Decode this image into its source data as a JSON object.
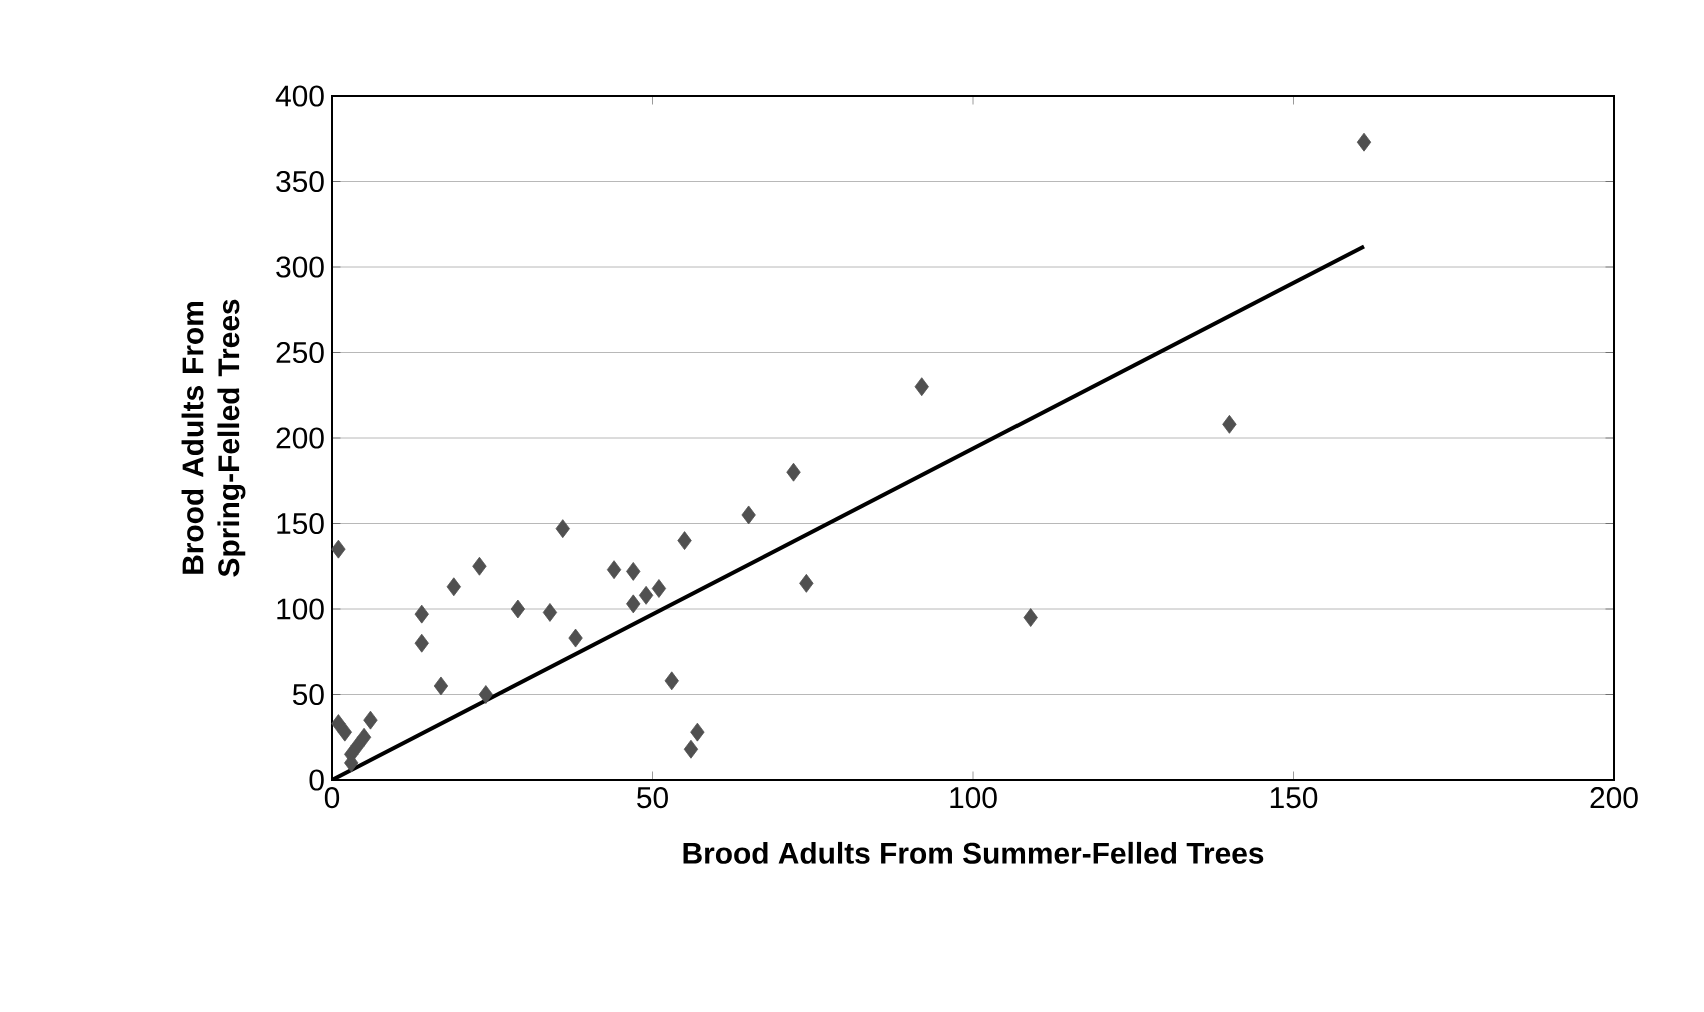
{
  "chart_data": {
    "type": "scatter",
    "xlabel": "Brood Adults From Summer-Felled Trees",
    "ylabel": "Brood Adults From Spring-Felled Trees",
    "xlim": [
      0,
      200
    ],
    "xticks": [
      0,
      50,
      100,
      150,
      200
    ],
    "ylim": [
      0,
      400
    ],
    "yticks": [
      0,
      50,
      100,
      150,
      200,
      250,
      300,
      350,
      400
    ],
    "grid": "y",
    "marker": "diamond",
    "series": [
      {
        "type": "scatter",
        "color": "#505050",
        "x": [
          1,
          1,
          2,
          3,
          4,
          5,
          6,
          3,
          14,
          14,
          17,
          19,
          23,
          24,
          29,
          34,
          36,
          38,
          44,
          47,
          47,
          49,
          51,
          53,
          55,
          56,
          57,
          65,
          72,
          74,
          92,
          109,
          140,
          161
        ],
        "values": [
          135,
          33,
          28,
          15,
          20,
          25,
          35,
          10,
          97,
          80,
          55,
          113,
          125,
          50,
          100,
          98,
          147,
          83,
          123,
          122,
          103,
          108,
          112,
          58,
          140,
          18,
          28,
          155,
          180,
          115,
          230,
          95,
          208,
          373
        ]
      },
      {
        "type": "line",
        "color": "#000000",
        "marker": "none",
        "x": [
          0,
          161
        ],
        "values": [
          0,
          312
        ]
      }
    ]
  }
}
